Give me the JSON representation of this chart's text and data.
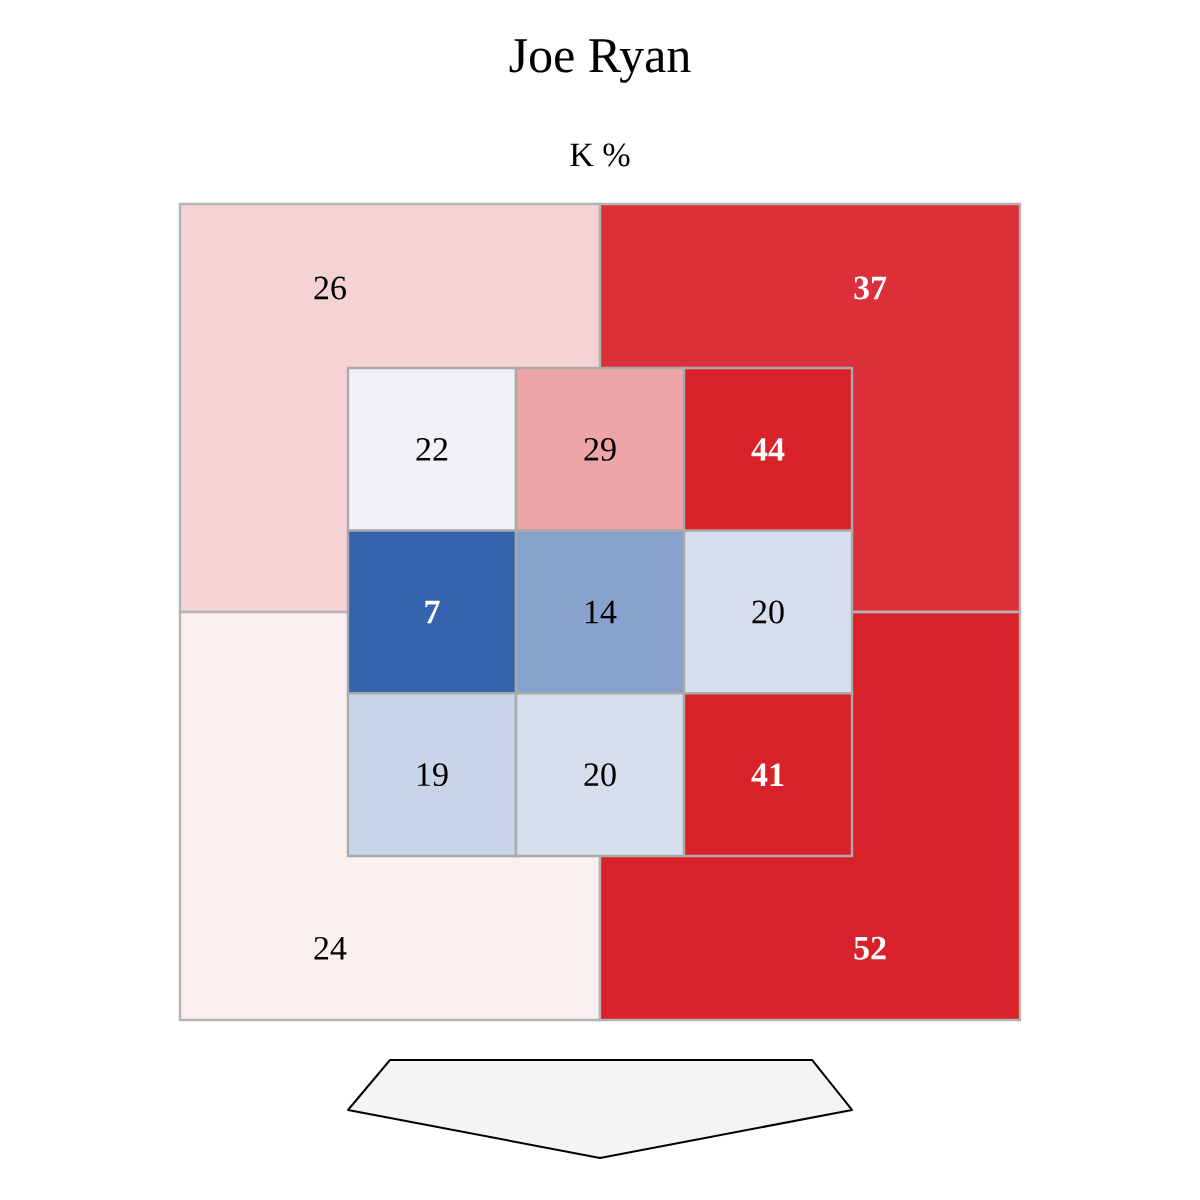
{
  "chart_data": [
    {
      "type": "heatmap",
      "title": "Joe Ryan",
      "subtitle": "K %",
      "categories": [
        null,
        null
      ],
      "y_categories": [
        null,
        null
      ],
      "cells": [
        [
          26,
          37
        ],
        [
          24,
          52
        ]
      ],
      "colors": [
        [
          "#f5d3d4",
          "#dc2f39"
        ],
        [
          "#fcefef",
          "#d8212a"
        ]
      ],
      "data_labels": true
    },
    {
      "type": "heatmap",
      "categories": [
        null,
        null,
        null
      ],
      "y_categories": [
        null,
        null,
        null
      ],
      "cells": [
        [
          22,
          29,
          44
        ],
        [
          7,
          14,
          20
        ],
        [
          19,
          20,
          41
        ]
      ],
      "colors": [
        [
          "#f1f2f8",
          "#eda5a8",
          "#d82129"
        ],
        [
          "#3563ad",
          "#86a2cd",
          "#d6deed"
        ],
        [
          "#c8d5e8",
          "#d6deed",
          "#d82129"
        ]
      ],
      "data_labels": true
    }
  ]
}
